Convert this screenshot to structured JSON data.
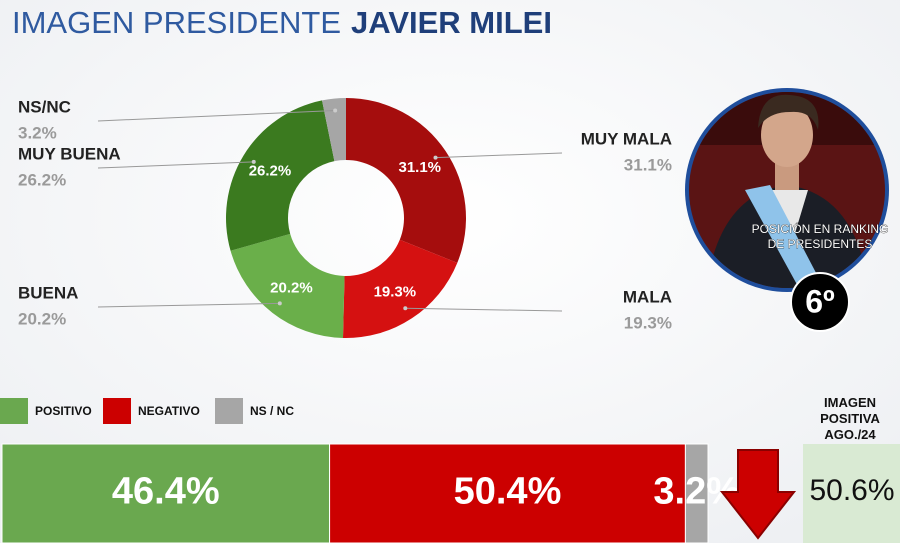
{
  "header": {
    "title": "IMAGEN PRESIDENTE",
    "name": "JAVIER MILEI"
  },
  "chart_data": [
    {
      "type": "pie",
      "donut": true,
      "categories": [
        "MUY MALA",
        "MALA",
        "BUENA",
        "MUY BUENA",
        "NS/NC"
      ],
      "values": [
        31.1,
        19.3,
        20.2,
        26.2,
        3.2
      ],
      "value_labels": [
        "31.1%",
        "19.3%",
        "20.2%",
        "26.2%",
        "3.2%"
      ],
      "colors": [
        "#a50d0d",
        "#d51111",
        "#6aaf4a",
        "#3b7a1f",
        "#a6a6a6"
      ]
    },
    {
      "type": "bar",
      "orientation": "horizontal",
      "stacked": true,
      "xlim": [
        0,
        100
      ],
      "series": [
        {
          "name": "POSITIVO",
          "color": "#6aa84f",
          "values": [
            46.4
          ],
          "value_labels": [
            "46.4%"
          ]
        },
        {
          "name": "NEGATIVO",
          "color": "#cc0000",
          "values": [
            50.4
          ],
          "value_labels": [
            "50.4%"
          ]
        },
        {
          "name": "NS / NC",
          "color": "#a6a6a6",
          "values": [
            3.2
          ],
          "value_labels": [
            "3.2%"
          ]
        }
      ]
    }
  ],
  "ranking": {
    "lines": [
      "POSICIÓN EN RANKING",
      "DE PRESIDENTES"
    ],
    "position": "6º"
  },
  "comparison": {
    "lines": [
      "IMAGEN",
      "POSITIVA",
      "AGO./24"
    ],
    "value": "50.6%"
  }
}
